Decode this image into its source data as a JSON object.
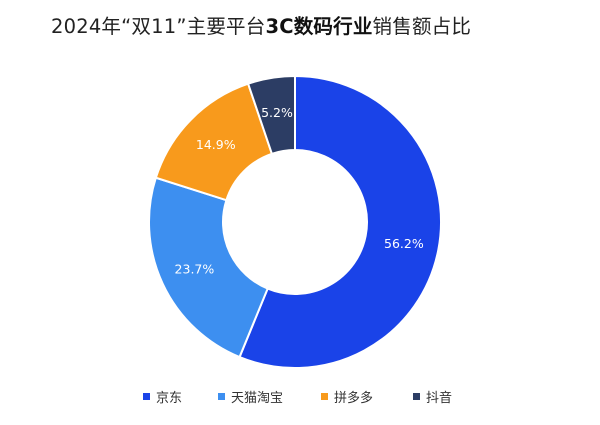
{
  "title": {
    "prefix": "2024年“双11”主要平台",
    "bold": "3C数码行业",
    "suffix": "销售额占比"
  },
  "chart_data": {
    "type": "pie",
    "donut": true,
    "title": "2024年“双11”主要平台3C数码行业销售额占比",
    "unit": "%",
    "legend_position": "bottom",
    "slices": [
      {
        "name": "京东",
        "value": 56.2,
        "label": "56.2%",
        "color": "#1a43e8"
      },
      {
        "name": "天猫淘宝",
        "value": 23.7,
        "label": "23.7%",
        "color": "#3d8ff0"
      },
      {
        "name": "拼多多",
        "value": 14.9,
        "label": "14.9%",
        "color": "#f89a1c"
      },
      {
        "name": "抖音",
        "value": 5.2,
        "label": "5.2%",
        "color": "#2c3d64"
      }
    ]
  }
}
